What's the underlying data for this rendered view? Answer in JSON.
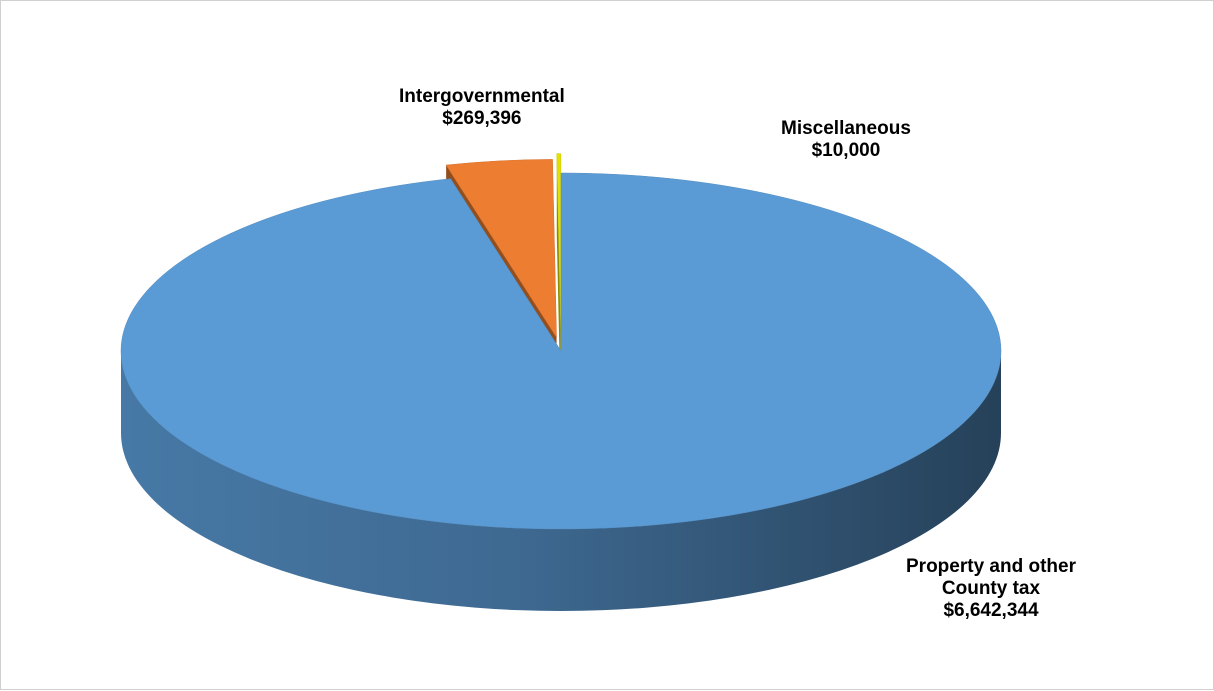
{
  "chart_data": {
    "type": "pie",
    "title": "",
    "style": "3d-exploded",
    "slices": [
      {
        "label_lines": [
          "Property and other",
          "County tax"
        ],
        "value_text": "$6,642,344",
        "value": 6642344,
        "color": "#5b9bd5"
      },
      {
        "label_lines": [
          "Intergovernmental"
        ],
        "value_text": "$269,396",
        "value": 269396,
        "color": "#ed7d31"
      },
      {
        "label_lines": [
          "Miscellaneous"
        ],
        "value_text": "$10,000",
        "value": 10000,
        "color": "#e3e000"
      }
    ],
    "legend": "none"
  }
}
